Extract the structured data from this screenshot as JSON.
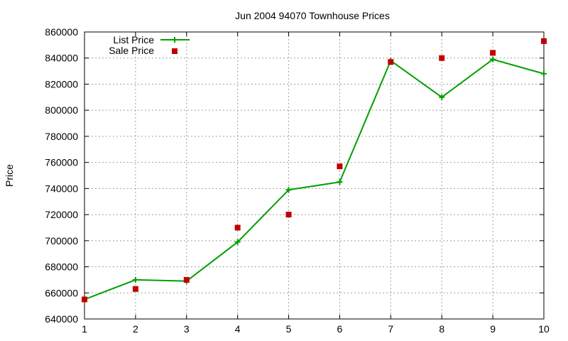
{
  "chart_data": {
    "type": "line",
    "title": "Jun 2004 94070 Townhouse Prices",
    "xlabel": "",
    "ylabel": "Price",
    "xlim": [
      1,
      10
    ],
    "ylim": [
      640000,
      860000
    ],
    "x": [
      1,
      2,
      3,
      4,
      5,
      6,
      7,
      8,
      9,
      10
    ],
    "x_ticks": [
      "1",
      "2",
      "3",
      "4",
      "5",
      "6",
      "7",
      "8",
      "9",
      "10"
    ],
    "y_ticks": [
      "640000",
      "660000",
      "680000",
      "700000",
      "720000",
      "740000",
      "760000",
      "780000",
      "800000",
      "820000",
      "840000",
      "860000"
    ],
    "grid": true,
    "legend_position": "top-left",
    "series": [
      {
        "name": "List Price",
        "style": "line-with-plus-markers",
        "color": "#00a000",
        "values": [
          655000,
          670000,
          669000,
          699000,
          739000,
          745000,
          838000,
          810000,
          839000,
          828000
        ]
      },
      {
        "name": "Sale Price",
        "style": "square-markers",
        "color": "#c00000",
        "values": [
          655000,
          663000,
          670000,
          710000,
          720000,
          757000,
          837000,
          840000,
          844000,
          853000
        ]
      }
    ]
  }
}
